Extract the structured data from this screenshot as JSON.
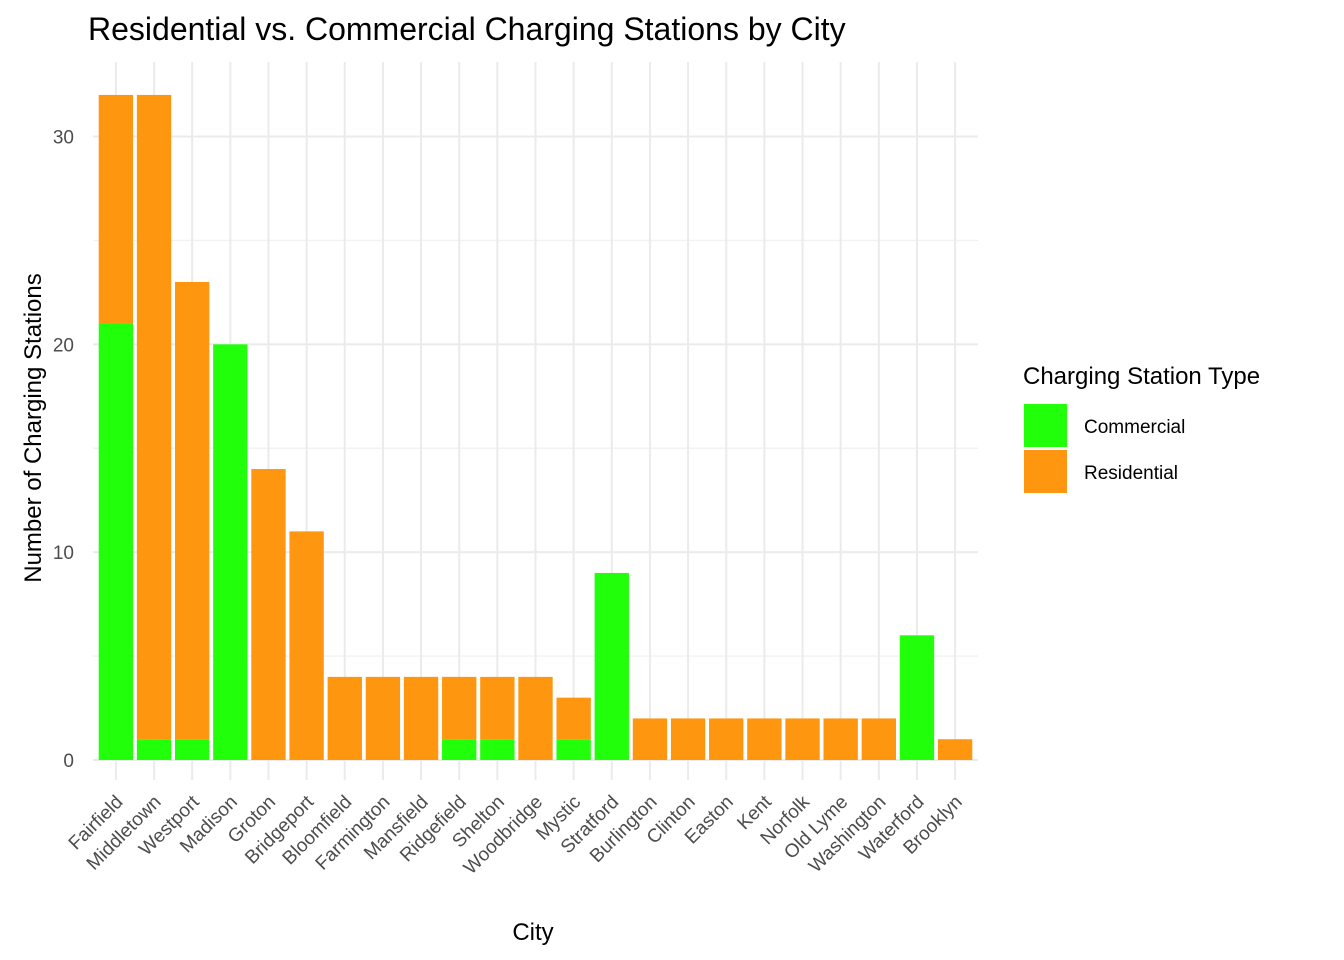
{
  "chart_data": {
    "type": "bar",
    "stacked": true,
    "title": "Residential vs. Commercial Charging Stations by City",
    "xlabel": "City",
    "ylabel": "Number of Charging Stations",
    "ylim": [
      0,
      33
    ],
    "yticks": [
      0,
      10,
      20,
      30
    ],
    "grid": true,
    "legend_position": "right",
    "legend_title": "Charging Station Type",
    "categories": [
      "Fairfield",
      "Middletown",
      "Westport",
      "Madison",
      "Groton",
      "Bridgeport",
      "Bloomfield",
      "Farmington",
      "Mansfield",
      "Ridgefield",
      "Shelton",
      "Woodbridge",
      "Mystic",
      "Stratford",
      "Burlington",
      "Clinton",
      "Easton",
      "Kent",
      "Norfolk",
      "Old Lyme",
      "Washington",
      "Waterford",
      "Brooklyn"
    ],
    "series": [
      {
        "name": "Commercial",
        "color": "#22ff0a",
        "values": [
          21,
          1,
          1,
          20,
          0,
          0,
          0,
          0,
          0,
          1,
          1,
          0,
          1,
          9,
          0,
          0,
          0,
          0,
          0,
          0,
          0,
          6,
          0
        ]
      },
      {
        "name": "Residential",
        "color": "#ff9610",
        "values": [
          11,
          31,
          22,
          0,
          14,
          11,
          4,
          4,
          4,
          3,
          3,
          4,
          2,
          0,
          2,
          2,
          2,
          2,
          2,
          2,
          2,
          0,
          1
        ]
      }
    ]
  }
}
